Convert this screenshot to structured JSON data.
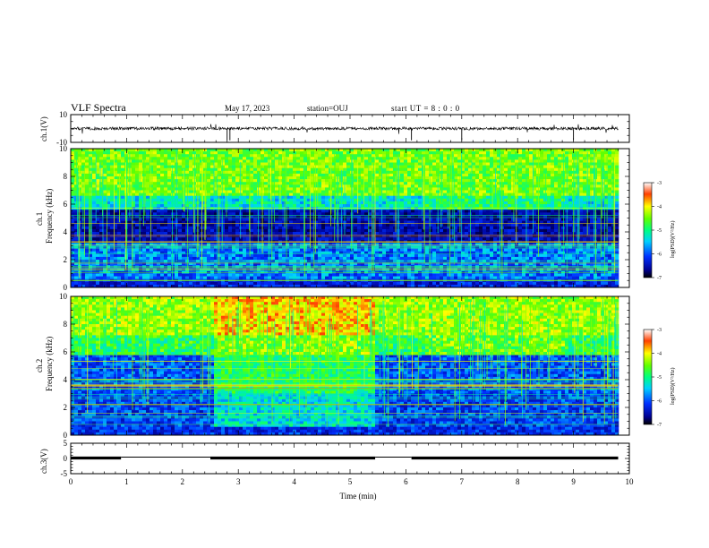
{
  "header": {
    "title": "VLF Spectra",
    "date": "May 17, 2023",
    "station": "station=OUJ",
    "start": "start  UT =  8 : 0  : 0"
  },
  "chart_data": [
    {
      "type": "line",
      "name": "ch1-waveform",
      "ylabel": "ch.1(V)",
      "ylim": [
        -10,
        10
      ],
      "yticks": [
        "10",
        "-10"
      ],
      "xlim": [
        0,
        10
      ],
      "trace_level": 0,
      "trace_end_min": 9.8
    },
    {
      "type": "heatmap",
      "name": "ch1-spectrogram",
      "ylabel": "ch.1\nFrequency (kHz)",
      "ylim": [
        0,
        10
      ],
      "yticks": [
        "10",
        "8",
        "6",
        "4",
        "2",
        "0"
      ],
      "xlim": [
        0,
        10
      ],
      "data_end_min": 9.8,
      "colorbar": {
        "label": "log(PSD)(V²/Hz)",
        "ticks": [
          "-3",
          "-4",
          "-5",
          "-6",
          "-7"
        ],
        "range": [
          -7,
          -3
        ]
      }
    },
    {
      "type": "heatmap",
      "name": "ch2-spectrogram",
      "ylabel": "ch.2\nFrequency (kHz)",
      "ylim": [
        0,
        10
      ],
      "yticks": [
        "10",
        "8",
        "6",
        "4",
        "2",
        "0"
      ],
      "xlim": [
        0,
        10
      ],
      "data_end_min": 9.8,
      "colorbar": {
        "label": "log(PSD)(V²/Hz)",
        "ticks": [
          "-3",
          "-4",
          "-5",
          "-6",
          "-7"
        ],
        "range": [
          -7,
          -3
        ]
      }
    },
    {
      "type": "line",
      "name": "ch3-status",
      "ylabel": "ch.3(V)",
      "ylim": [
        -5,
        5
      ],
      "yticks": [
        "5",
        "0",
        "-5"
      ],
      "xlim": [
        0,
        10
      ],
      "xlabel": "Time (min)",
      "xticks": [
        "0",
        "1",
        "2",
        "3",
        "4",
        "5",
        "6",
        "7",
        "8",
        "9",
        "10"
      ],
      "segments": [
        {
          "from": 0.0,
          "to": 0.9,
          "level": "high"
        },
        {
          "from": 0.9,
          "to": 2.5,
          "level": "low"
        },
        {
          "from": 2.5,
          "to": 5.45,
          "level": "high"
        },
        {
          "from": 5.45,
          "to": 6.1,
          "level": "low"
        },
        {
          "from": 6.1,
          "to": 9.8,
          "level": "high"
        }
      ]
    }
  ]
}
